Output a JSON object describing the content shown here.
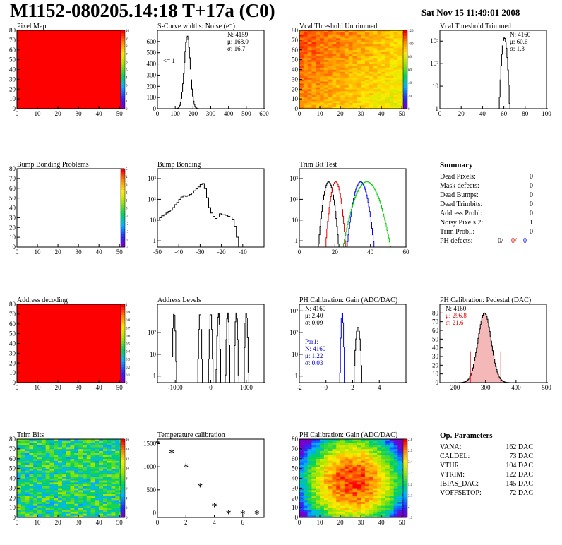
{
  "header": {
    "title": "M1152-080205.14:18 T+17a (C0)",
    "date": "Sat Nov 15 11:49:01 2008"
  },
  "colors": {
    "red": "#ff0000",
    "black": "#000000",
    "green": "#00cc00",
    "blue": "#0000ff",
    "map_red": "#ff0000",
    "light_red_fill": "#f4b8b8"
  },
  "chart_data": [
    {
      "id": "pixel-map",
      "type": "heatmap",
      "title": "Pixel Map",
      "xlim": [
        0,
        52
      ],
      "ylim": [
        0,
        80
      ],
      "xticks": [
        "0",
        "10",
        "20",
        "30",
        "40",
        "50"
      ],
      "yticks": [
        "0",
        "10",
        "20",
        "30",
        "40",
        "50",
        "60",
        "70",
        "80"
      ],
      "pattern": "uniform-max",
      "zrange": [
        0,
        10
      ],
      "zticks": [
        "10",
        "9",
        "8",
        "7",
        "6",
        "5",
        "4",
        "3",
        "2",
        "1",
        "0"
      ]
    },
    {
      "id": "scurve-noise",
      "type": "histogram",
      "title": "S-Curve widths: Noise (e⁻)",
      "xlim": [
        0,
        600
      ],
      "ylim": [
        0,
        700
      ],
      "xticks": [
        "0",
        "100",
        "200",
        "300",
        "400",
        "500",
        "600"
      ],
      "yticks": [
        "0",
        "100",
        "200",
        "300",
        "400",
        "500",
        "600"
      ],
      "annotation": "<= 1",
      "stats": [
        "N: 4159",
        "μ: 168.0",
        "σ: 16.7"
      ],
      "peaks": [
        {
          "center": 168,
          "sigma": 16.7,
          "height": 650,
          "color": "black"
        }
      ]
    },
    {
      "id": "vcal-untrimmed",
      "type": "heatmap",
      "title": "Vcal Threshold Untrimmed",
      "xlim": [
        0,
        52
      ],
      "ylim": [
        0,
        80
      ],
      "xticks": [
        "0",
        "10",
        "20",
        "30",
        "40",
        "50"
      ],
      "yticks": [
        "0",
        "10",
        "20",
        "30",
        "40",
        "50",
        "60",
        "70",
        "80"
      ],
      "pattern": "gradient-orange-yellow",
      "zrange": [
        0,
        130
      ],
      "zticks": [
        "120",
        "100",
        "80",
        "60",
        "40",
        "20",
        "0"
      ]
    },
    {
      "id": "vcal-trimmed",
      "type": "histogram",
      "title": "Vcal Threshold Trimmed",
      "log_y": true,
      "xlim": [
        0,
        100
      ],
      "ylim": [
        1,
        3000
      ],
      "xticks": [
        "0",
        "20",
        "40",
        "60",
        "80",
        "100"
      ],
      "yticks": [
        "1",
        "10",
        "10²",
        "10³"
      ],
      "stats": [
        "N: 4160",
        "μ: 60.6",
        "σ:  1.3"
      ],
      "peaks": [
        {
          "center": 60.6,
          "sigma": 1.3,
          "height": 1400,
          "color": "black"
        }
      ]
    },
    {
      "id": "bump-bonding-problems",
      "type": "heatmap",
      "title": "Bump Bonding Problems",
      "xlim": [
        0,
        52
      ],
      "ylim": [
        0,
        80
      ],
      "xticks": [
        "0",
        "10",
        "20",
        "30",
        "40",
        "50"
      ],
      "yticks": [
        "0",
        "10",
        "20",
        "30",
        "40",
        "50",
        "60",
        "70",
        "80"
      ],
      "pattern": "empty",
      "zrange": [
        -5,
        5
      ],
      "zticks": [
        "5",
        "4",
        "3",
        "2",
        "1",
        "0",
        "-1",
        "-2",
        "-3",
        "-4",
        "-5"
      ]
    },
    {
      "id": "bump-bonding",
      "type": "histogram",
      "title": "Bump Bonding",
      "log_y": true,
      "xlim": [
        -50,
        0
      ],
      "ylim": [
        0.5,
        3000
      ],
      "xticks": [
        "-50",
        "-40",
        "-30",
        "-20",
        "-10"
      ],
      "yticks": [
        "1",
        "10",
        "10²",
        "10³"
      ],
      "series": [
        {
          "color": "black",
          "step_x": [
            -50,
            -49,
            -48,
            -47,
            -46,
            -45,
            -44,
            -43,
            -42,
            -41,
            -40,
            -39,
            -38,
            -37,
            -36,
            -35,
            -34,
            -33,
            -32,
            -31,
            -30,
            -29,
            -28,
            -27,
            -26,
            -25,
            -24,
            -23,
            -22,
            -21,
            -20,
            -19,
            -18,
            -17,
            -16,
            -15,
            -14,
            -13,
            -12,
            -11,
            -10
          ],
          "step_y": [
            10,
            13,
            16,
            18,
            22,
            26,
            30,
            40,
            55,
            70,
            100,
            130,
            150,
            140,
            150,
            170,
            200,
            260,
            320,
            400,
            520,
            580,
            330,
            120,
            40,
            22,
            15,
            12,
            14,
            20,
            18,
            18,
            17,
            15,
            14,
            11,
            5,
            1.5,
            0.3,
            0.3,
            0.3
          ]
        }
      ]
    },
    {
      "id": "trim-bit-test",
      "type": "histogram",
      "title": "Trim Bit Test",
      "log_y": true,
      "xlim": [
        0,
        60
      ],
      "ylim": [
        0.5,
        3000
      ],
      "xticks": [
        "0",
        "20",
        "40",
        "60"
      ],
      "yticks": [
        "1",
        "10",
        "10²",
        "10³"
      ],
      "peaks": [
        {
          "center": 16.5,
          "sigma": 1.5,
          "height": 700,
          "color": "black"
        },
        {
          "center": 20.5,
          "sigma": 1.5,
          "height": 700,
          "color": "red"
        },
        {
          "center": 34.5,
          "sigma": 2.0,
          "height": 700,
          "color": "blue"
        },
        {
          "center": 38,
          "sigma": 3.5,
          "height": 700,
          "color": "green"
        }
      ]
    },
    {
      "id": "summary",
      "type": "table",
      "title": "Summary",
      "rows": [
        {
          "label": "Dead Pixels:",
          "value": "0"
        },
        {
          "label": "Mask defects:",
          "value": "0"
        },
        {
          "label": "Dead Bumps:",
          "value": "0"
        },
        {
          "label": "Dead Trimbits:",
          "value": "0"
        },
        {
          "label": "Address Probl:",
          "value": "0"
        },
        {
          "label": "Noisy Pixels 2:",
          "value": "1"
        },
        {
          "label": "Trim Probl.:",
          "value": "0"
        }
      ],
      "ph_defects": {
        "label": "PH defects:",
        "black": "0/",
        "red": "0/",
        "blue": "0"
      }
    },
    {
      "id": "address-decoding",
      "type": "heatmap",
      "title": "Address decoding",
      "xlim": [
        0,
        52
      ],
      "ylim": [
        0,
        80
      ],
      "xticks": [
        "0",
        "10",
        "20",
        "30",
        "40",
        "50"
      ],
      "yticks": [
        "0",
        "10",
        "20",
        "30",
        "40",
        "50",
        "60",
        "70",
        "80"
      ],
      "pattern": "uniform-max",
      "zrange": [
        0,
        1
      ],
      "zticks": [
        "1",
        "0.9",
        "0.8",
        "0.7",
        "0.6",
        "0.5",
        "0.4",
        "0.3",
        "0.2",
        "0.1",
        "0"
      ]
    },
    {
      "id": "address-levels",
      "type": "histogram",
      "title": "Address Levels",
      "log_y": true,
      "xlim": [
        -1500,
        1500
      ],
      "ylim": [
        0.5,
        2000
      ],
      "xticks": [
        "-1000",
        "0",
        "1000"
      ],
      "yticks": [
        "1",
        "10",
        "10²"
      ],
      "peaks": [
        {
          "center": -1030,
          "sigma": 5,
          "height": 800,
          "color": "black"
        },
        {
          "center": -300,
          "sigma": 8,
          "height": 800,
          "color": "black"
        },
        {
          "center": 0,
          "sigma": 8,
          "height": 800,
          "color": "black"
        },
        {
          "center": 220,
          "sigma": 8,
          "height": 800,
          "color": "black"
        },
        {
          "center": 480,
          "sigma": 8,
          "height": 800,
          "color": "black"
        },
        {
          "center": 720,
          "sigma": 8,
          "height": 800,
          "color": "black"
        },
        {
          "center": 1000,
          "sigma": 8,
          "height": 800,
          "color": "black"
        }
      ]
    },
    {
      "id": "ph-gain",
      "type": "histogram",
      "title": "PH Calibration: Gain (ADC/DAC)",
      "log_y": true,
      "xlim": [
        -2,
        6
      ],
      "ylim": [
        0.5,
        2000
      ],
      "xticks": [
        "-2",
        "0",
        "2",
        "4"
      ],
      "yticks": [
        "1",
        "10",
        "10²",
        "10³"
      ],
      "stats": [
        "N: 4160",
        "μ: 2.40",
        "σ: 0.09"
      ],
      "stats2": [
        "Par1:",
        "N: 4160",
        "μ: 1.22",
        "σ: 0.03"
      ],
      "peaks": [
        {
          "center": 2.4,
          "sigma": 0.09,
          "height": 180,
          "color": "black"
        },
        {
          "center": 1.22,
          "sigma": 0.03,
          "height": 800,
          "color": "blue"
        }
      ]
    },
    {
      "id": "ph-pedestal",
      "type": "histogram",
      "title": "PH Calibration: Pedestal (DAC)",
      "xlim": [
        150,
        500
      ],
      "ylim": [
        0,
        90
      ],
      "xticks": [
        "200",
        "300",
        "400",
        "500"
      ],
      "yticks": [
        "0",
        "10",
        "20",
        "30",
        "40",
        "50",
        "60",
        "70",
        "80"
      ],
      "stats": [
        "N: 4160"
      ],
      "stats_red": [
        "μ: 296.8",
        "σ: 21.6"
      ],
      "marks": [
        250,
        350
      ],
      "peaks": [
        {
          "center": 296.8,
          "sigma": 21.6,
          "height": 80,
          "color": "black"
        }
      ]
    },
    {
      "id": "trim-bits",
      "type": "heatmap",
      "title": "Trim Bits",
      "xlim": [
        0,
        52
      ],
      "ylim": [
        0,
        80
      ],
      "xticks": [
        "0",
        "10",
        "20",
        "30",
        "40",
        "50"
      ],
      "yticks": [
        "0",
        "10",
        "20",
        "30",
        "40",
        "50",
        "60",
        "70",
        "80"
      ],
      "pattern": "noise-green",
      "zrange": [
        0,
        16
      ],
      "zticks": [
        "16",
        "14",
        "12",
        "10",
        "8",
        "6",
        "4",
        "2",
        "0"
      ]
    },
    {
      "id": "temperature-calibration",
      "type": "scatter",
      "title": "Temperature calibration",
      "xlim": [
        0,
        7.5
      ],
      "ylim": [
        -100,
        1600
      ],
      "xticks": [
        "0",
        "2",
        "4",
        "6"
      ],
      "yticks": [
        "0",
        "500",
        "1000",
        "1500"
      ],
      "x": [
        0,
        1,
        2,
        3,
        4,
        5,
        6,
        7
      ],
      "y": [
        1500,
        1290,
        990,
        560,
        130,
        -20,
        -30,
        -30
      ]
    },
    {
      "id": "ph-gain-map",
      "type": "heatmap",
      "title": "PH Calibration: Gain (ADC/DAC)",
      "xlim": [
        0,
        52
      ],
      "ylim": [
        0,
        80
      ],
      "xticks": [
        "0",
        "10",
        "20",
        "30",
        "40",
        "50"
      ],
      "yticks": [
        "0",
        "10",
        "20",
        "30",
        "40",
        "50",
        "60",
        "70",
        "80"
      ],
      "pattern": "blob-center",
      "zrange": [
        1.8,
        2.7
      ],
      "zticks": [
        "2.6",
        "2.5",
        "2.4",
        "2.3",
        "2.2",
        "2.1",
        "2",
        "1.9"
      ]
    },
    {
      "id": "op-parameters",
      "type": "table",
      "title": "Op. Parameters",
      "rows": [
        {
          "label": "VANA:",
          "value": "162 DAC"
        },
        {
          "label": "CALDEL:",
          "value": "73 DAC"
        },
        {
          "label": "VTHR:",
          "value": "104 DAC"
        },
        {
          "label": "VTRIM:",
          "value": "122 DAC"
        },
        {
          "label": "IBIAS_DAC:",
          "value": "145 DAC"
        },
        {
          "label": "VOFFSETOP:",
          "value": "72 DAC"
        }
      ]
    }
  ]
}
